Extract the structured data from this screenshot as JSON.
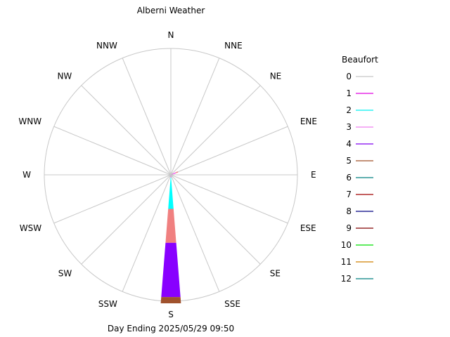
{
  "chart_data": {
    "type": "windrose",
    "title": "Alberni Weather",
    "footer": "Day Ending 2025/05/29 09:50",
    "directions": [
      "N",
      "NNE",
      "NE",
      "ENE",
      "E",
      "ESE",
      "SE",
      "SSE",
      "S",
      "SSW",
      "SW",
      "WSW",
      "W",
      "WNW",
      "NW",
      "NNW"
    ],
    "legend": {
      "title": "Beaufort",
      "placement": "right",
      "entries": [
        {
          "label": "0",
          "color": "#c8c8c8"
        },
        {
          "label": "1",
          "color": "#e000e0"
        },
        {
          "label": "2",
          "color": "#00f0f0"
        },
        {
          "label": "3",
          "color": "#f080f0"
        },
        {
          "label": "4",
          "color": "#8000f0"
        },
        {
          "label": "5",
          "color": "#a05028"
        },
        {
          "label": "6",
          "color": "#008080"
        },
        {
          "label": "7",
          "color": "#a00000"
        },
        {
          "label": "8",
          "color": "#000080"
        },
        {
          "label": "9",
          "color": "#800000"
        },
        {
          "label": "10",
          "color": "#00e000"
        },
        {
          "label": "11",
          "color": "#d08000"
        },
        {
          "label": "12",
          "color": "#008080"
        }
      ]
    },
    "petal_colors": {
      "1": "#ff00ff",
      "2": "#00ffff",
      "3": "#f08080",
      "4": "#8800ff",
      "5": "#a0522d"
    },
    "petals": [
      {
        "direction": "ENE",
        "segments": [
          {
            "beaufort": 1,
            "value": 0.04
          },
          {
            "beaufort": 3,
            "value": 0.02
          }
        ]
      },
      {
        "direction": "S",
        "segments": [
          {
            "beaufort": 1,
            "value": 0.02
          },
          {
            "beaufort": 2,
            "value": 0.25
          },
          {
            "beaufort": 3,
            "value": 0.27
          },
          {
            "beaufort": 4,
            "value": 0.43
          },
          {
            "beaufort": 5,
            "value": 0.05
          }
        ]
      }
    ],
    "max_radius_value": 1.0
  }
}
